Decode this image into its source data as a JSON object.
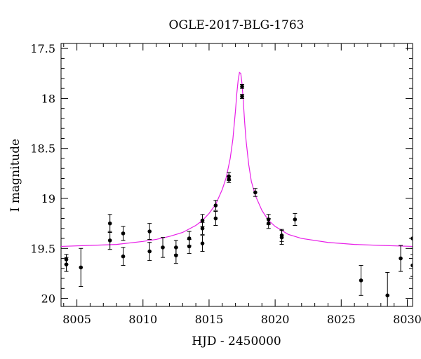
{
  "chart_data": {
    "type": "scatter",
    "title": "OGLE-2017-BLG-1763",
    "xlabel": "HJD - 2450000",
    "ylabel": "I magnitude",
    "xlim": [
      8003.8,
      8030.4
    ],
    "ylim": [
      20.08,
      17.45
    ],
    "y_inverted": true,
    "xticks": [
      8005,
      8010,
      8015,
      8020,
      8025,
      8030
    ],
    "xtick_labels": [
      "8005",
      "8010",
      "8015",
      "8020",
      "8025",
      "8030"
    ],
    "yticks": [
      17.5,
      18,
      18.5,
      19,
      19.5,
      20
    ],
    "ytick_labels": [
      "17.5",
      "18",
      "18.5",
      "19",
      "19.5",
      "20"
    ],
    "grid": false,
    "points": [
      {
        "x": 8004.2,
        "y": 19.61,
        "err": 0.05
      },
      {
        "x": 8004.2,
        "y": 19.66,
        "err": 0.07
      },
      {
        "x": 8005.3,
        "y": 19.69,
        "err": 0.19
      },
      {
        "x": 8007.5,
        "y": 19.25,
        "err": 0.09
      },
      {
        "x": 8007.5,
        "y": 19.42,
        "err": 0.09
      },
      {
        "x": 8008.5,
        "y": 19.35,
        "err": 0.07
      },
      {
        "x": 8008.5,
        "y": 19.58,
        "err": 0.09
      },
      {
        "x": 8010.5,
        "y": 19.33,
        "err": 0.08
      },
      {
        "x": 8010.5,
        "y": 19.53,
        "err": 0.09
      },
      {
        "x": 8011.5,
        "y": 19.49,
        "err": 0.1
      },
      {
        "x": 8012.5,
        "y": 19.49,
        "err": 0.07
      },
      {
        "x": 8012.5,
        "y": 19.57,
        "err": 0.08
      },
      {
        "x": 8013.5,
        "y": 19.4,
        "err": 0.07
      },
      {
        "x": 8013.5,
        "y": 19.48,
        "err": 0.07
      },
      {
        "x": 8014.5,
        "y": 19.22,
        "err": 0.06
      },
      {
        "x": 8014.5,
        "y": 19.3,
        "err": 0.06
      },
      {
        "x": 8014.5,
        "y": 19.45,
        "err": 0.08
      },
      {
        "x": 8015.5,
        "y": 19.07,
        "err": 0.05
      },
      {
        "x": 8015.5,
        "y": 19.2,
        "err": 0.07
      },
      {
        "x": 8016.5,
        "y": 18.78,
        "err": 0.04
      },
      {
        "x": 8016.5,
        "y": 18.81,
        "err": 0.03
      },
      {
        "x": 8017.5,
        "y": 17.88,
        "err": 0.02
      },
      {
        "x": 8017.5,
        "y": 17.98,
        "err": 0.02
      },
      {
        "x": 8018.5,
        "y": 18.94,
        "err": 0.04
      },
      {
        "x": 8019.5,
        "y": 19.21,
        "err": 0.05
      },
      {
        "x": 8019.5,
        "y": 19.25,
        "err": 0.05
      },
      {
        "x": 8020.5,
        "y": 19.37,
        "err": 0.06
      },
      {
        "x": 8020.5,
        "y": 19.39,
        "err": 0.07
      },
      {
        "x": 8021.5,
        "y": 19.21,
        "err": 0.06
      },
      {
        "x": 8026.5,
        "y": 19.82,
        "err": 0.15
      },
      {
        "x": 8028.5,
        "y": 19.97,
        "err": 0.23
      },
      {
        "x": 8029.5,
        "y": 19.6,
        "err": 0.13
      },
      {
        "x": 8030.4,
        "y": 19.4,
        "err": 0.1
      },
      {
        "x": 8030.4,
        "y": 19.67,
        "err": 0.11
      }
    ],
    "model_curve": {
      "type": "line",
      "color": "#e81ee8",
      "x": [
        8003.8,
        8006,
        8008,
        8010,
        8011,
        8012,
        8013,
        8014,
        8014.5,
        8015,
        8015.5,
        8016,
        8016.3,
        8016.6,
        8016.8,
        8017,
        8017.1,
        8017.2,
        8017.3,
        8017.4,
        8017.5,
        8017.6,
        8017.7,
        8017.8,
        8018,
        8018.2,
        8018.5,
        8019,
        8019.5,
        8020,
        8021,
        8022,
        8024,
        8026,
        8028,
        8030.4
      ],
      "y": [
        19.48,
        19.47,
        19.46,
        19.43,
        19.41,
        19.38,
        19.34,
        19.27,
        19.22,
        19.15,
        19.06,
        18.91,
        18.79,
        18.6,
        18.41,
        18.12,
        17.95,
        17.82,
        17.74,
        17.75,
        17.86,
        18.05,
        18.25,
        18.42,
        18.66,
        18.83,
        18.97,
        19.12,
        19.22,
        19.28,
        19.36,
        19.4,
        19.44,
        19.46,
        19.47,
        19.48
      ]
    },
    "marker_color": "#000000"
  }
}
